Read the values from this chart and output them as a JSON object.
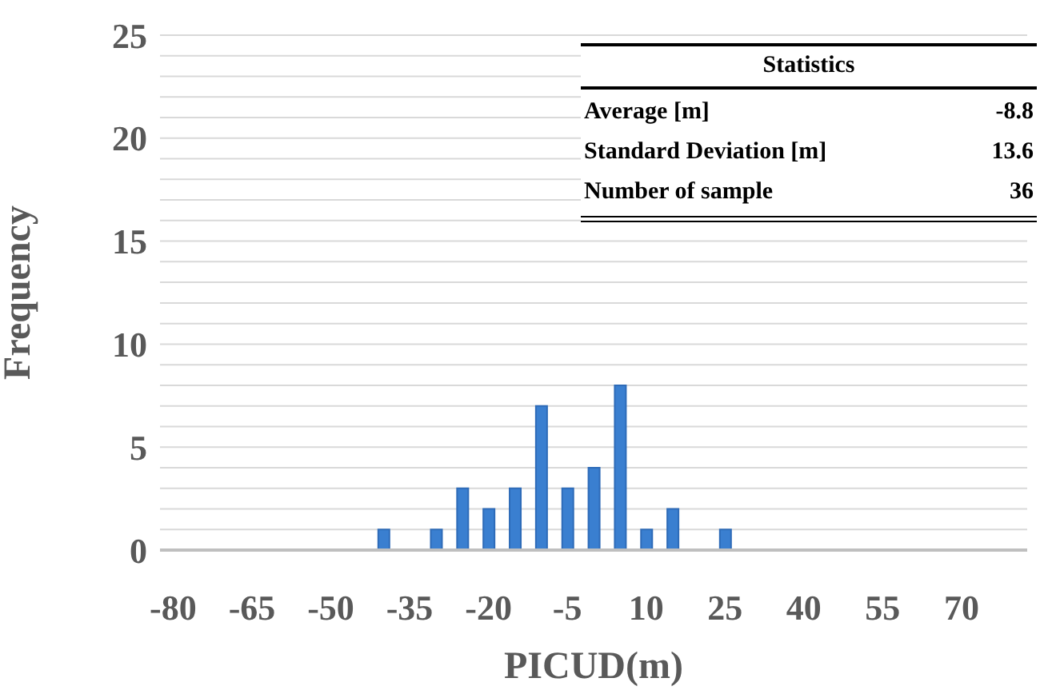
{
  "chart_data": {
    "type": "bar",
    "xlabel": "PICUD(m)",
    "ylabel": "Frequency",
    "categories": [
      "-80",
      null,
      null,
      "-65",
      null,
      null,
      "-50",
      null,
      null,
      "-35",
      null,
      null,
      "-20",
      null,
      null,
      "-5",
      null,
      null,
      "10",
      null,
      null,
      "25",
      null,
      null,
      "40",
      null,
      null,
      "55",
      null,
      null,
      "70",
      null,
      null
    ],
    "values": [
      0,
      0,
      0,
      0,
      0,
      0,
      0,
      0,
      1,
      0,
      1,
      3,
      2,
      3,
      7,
      3,
      4,
      8,
      1,
      2,
      0,
      1,
      0,
      0,
      0,
      0,
      0,
      0,
      0,
      0,
      0,
      0,
      0
    ],
    "color": "#3a7fd0",
    "ylim": [
      0,
      25
    ],
    "yticks": [
      0,
      {
        "value": 1,
        "label": null
      },
      {
        "value": 2,
        "label": null
      },
      {
        "value": 3,
        "label": null
      },
      {
        "value": 4,
        "label": null
      },
      5,
      {
        "value": 6,
        "label": null
      },
      {
        "value": 7,
        "label": null
      },
      {
        "value": 8,
        "label": null
      },
      {
        "value": 9,
        "label": null
      },
      10,
      {
        "value": 11,
        "label": null
      },
      {
        "value": 12,
        "label": null
      },
      {
        "value": 13,
        "label": null
      },
      {
        "value": 14,
        "label": null
      },
      15,
      {
        "value": 16,
        "label": null
      },
      {
        "value": 17,
        "label": null
      },
      {
        "value": 18,
        "label": null
      },
      {
        "value": 19,
        "label": null
      },
      20,
      {
        "value": 21,
        "label": null
      },
      {
        "value": 22,
        "label": null
      },
      {
        "value": 23,
        "label": null
      },
      {
        "value": 24,
        "label": null
      },
      25
    ],
    "grid": "y",
    "annotations": [
      "Statistics",
      "Average [m]",
      "-8.8",
      "Standard Deviation [m]",
      "13.6",
      "Number of sample",
      "36"
    ]
  }
}
